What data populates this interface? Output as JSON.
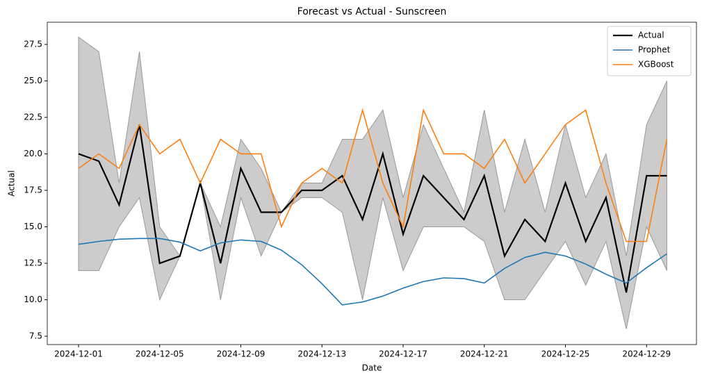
{
  "chart_data": {
    "type": "line",
    "title": "Forecast vs Actual - Sunscreen",
    "xlabel": "Date",
    "ylabel": "Actual",
    "x": [
      "2024-12-01",
      "2024-12-02",
      "2024-12-03",
      "2024-12-04",
      "2024-12-05",
      "2024-12-06",
      "2024-12-07",
      "2024-12-08",
      "2024-12-09",
      "2024-12-10",
      "2024-12-11",
      "2024-12-12",
      "2024-12-13",
      "2024-12-14",
      "2024-12-15",
      "2024-12-16",
      "2024-12-17",
      "2024-12-18",
      "2024-12-19",
      "2024-12-20",
      "2024-12-21",
      "2024-12-22",
      "2024-12-23",
      "2024-12-24",
      "2024-12-25",
      "2024-12-26",
      "2024-12-27",
      "2024-12-28",
      "2024-12-29",
      "2024-12-30"
    ],
    "band": {
      "color": "#999999",
      "upper": [
        28,
        27,
        18,
        27,
        15,
        13,
        18,
        15,
        21,
        19,
        16,
        18,
        18,
        21,
        21,
        23,
        17,
        22,
        19,
        16,
        23,
        16,
        21,
        16,
        22,
        17,
        20,
        13,
        22,
        25
      ],
      "lower": [
        12,
        12,
        15,
        17,
        10,
        13,
        18,
        10,
        17,
        13,
        16,
        17,
        17,
        16,
        10,
        17,
        12,
        15,
        15,
        15,
        14,
        10,
        10,
        12,
        14,
        11,
        14,
        8,
        15,
        12
      ]
    },
    "series": [
      {
        "name": "Actual",
        "color": "#000000",
        "values": [
          20,
          19.5,
          16.5,
          22,
          12.5,
          13,
          18,
          12.5,
          19,
          16,
          16,
          17.5,
          17.5,
          18.5,
          15.5,
          20,
          14.5,
          18.5,
          17,
          15.5,
          18.5,
          13,
          15.5,
          14,
          18,
          14,
          17,
          10.5,
          18.5,
          18.5
        ]
      },
      {
        "name": "Prophet",
        "color": "#1f77b4",
        "values": [
          13.8,
          14.0,
          14.15,
          14.2,
          14.2,
          13.95,
          13.35,
          13.9,
          14.1,
          14.0,
          13.4,
          12.4,
          11.1,
          9.65,
          9.85,
          10.25,
          10.8,
          11.25,
          11.5,
          11.45,
          11.15,
          12.15,
          12.9,
          13.25,
          13.0,
          12.45,
          11.75,
          11.15,
          12.2,
          13.15
        ]
      },
      {
        "name": "XGBoost",
        "color": "#ff7f0e",
        "values": [
          19,
          20,
          19,
          22,
          20,
          21,
          18,
          21,
          20,
          20,
          15,
          18,
          19,
          18,
          23,
          18,
          15,
          23,
          20,
          20,
          19,
          21,
          18,
          20,
          22,
          23,
          18,
          14,
          14,
          21
        ]
      }
    ],
    "xlim": [
      "2024-11-29T11:00",
      "2024-12-31T11:00"
    ],
    "xticks": [
      "2024-12-01",
      "2024-12-05",
      "2024-12-09",
      "2024-12-13",
      "2024-12-17",
      "2024-12-21",
      "2024-12-25",
      "2024-12-29"
    ],
    "ylim": [
      6.93,
      29.02
    ],
    "yticks": [
      7.5,
      {
        "value": 10,
        "label": "10.0"
      },
      12.5,
      {
        "value": 15,
        "label": "15.0"
      },
      17.5,
      {
        "value": 20,
        "label": "20.0"
      },
      22.5,
      {
        "value": 25,
        "label": "25.0"
      },
      27.5
    ],
    "legend": "upper right"
  }
}
